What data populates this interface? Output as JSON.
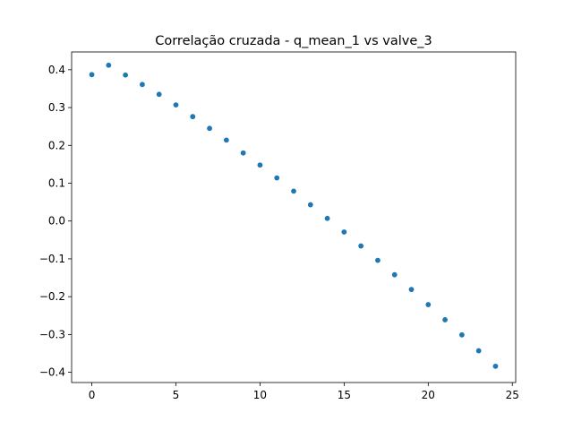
{
  "chart_data": {
    "type": "scatter",
    "title": "Correlação cruzada - q_mean_1 vs valve_3",
    "xlabel": "",
    "ylabel": "",
    "xlim": [
      -1.2,
      25.2
    ],
    "ylim": [
      -0.427,
      0.447
    ],
    "x_ticks": [
      0,
      5,
      10,
      15,
      20,
      25
    ],
    "y_ticks": [
      -0.4,
      -0.3,
      -0.2,
      -0.1,
      0.0,
      0.1,
      0.2,
      0.3,
      0.4
    ],
    "x_tick_labels": [
      "0",
      "5",
      "10",
      "15",
      "20",
      "25"
    ],
    "y_tick_labels": [
      "−0.4",
      "−0.3",
      "−0.2",
      "−0.1",
      "0.0",
      "0.1",
      "0.2",
      "0.3",
      "0.4"
    ],
    "grid": false,
    "legend": "none",
    "series": [
      {
        "color": "#1f77b4",
        "x": [
          0,
          1,
          2,
          3,
          4,
          5,
          6,
          7,
          8,
          9,
          10,
          11,
          12,
          13,
          14,
          15,
          16,
          17,
          18,
          19,
          20,
          21,
          22,
          23,
          24
        ],
        "y": [
          0.387,
          0.412,
          0.386,
          0.361,
          0.335,
          0.307,
          0.276,
          0.245,
          0.214,
          0.18,
          0.148,
          0.114,
          0.079,
          0.043,
          0.007,
          -0.029,
          -0.066,
          -0.104,
          -0.142,
          -0.181,
          -0.221,
          -0.261,
          -0.301,
          -0.343,
          -0.384
        ]
      }
    ]
  }
}
